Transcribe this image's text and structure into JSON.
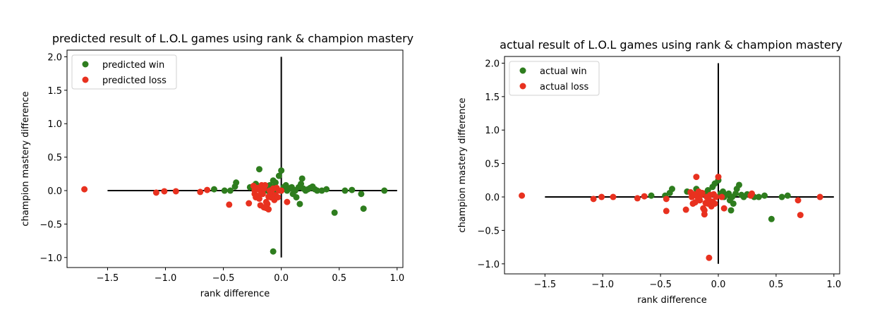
{
  "chart_data": [
    {
      "type": "scatter",
      "title": "predicted result of L.O.L games using rank & champion mastery",
      "xlabel": "rank difference",
      "ylabel": "champion mastery difference",
      "xlim": [
        -1.85,
        1.05
      ],
      "ylim": [
        -1.15,
        2.1
      ],
      "xticks": [
        -1.5,
        -1.0,
        -0.5,
        0.0,
        0.5,
        1.0
      ],
      "xtick_labels": [
        "−1.5",
        "−1.0",
        "−0.5",
        "0.0",
        "0.5",
        "1.0"
      ],
      "yticks": [
        -1.0,
        -0.5,
        0.0,
        0.5,
        1.0,
        1.5,
        2.0
      ],
      "ytick_labels": [
        "−1.0",
        "−0.5",
        "0.0",
        "0.5",
        "1.0",
        "1.5",
        "2.0"
      ],
      "grid": false,
      "legend_position": "top-left",
      "reference_lines": [
        {
          "x": [
            -1.5,
            1.0
          ],
          "y": [
            0.0,
            0.0
          ],
          "color": "#000000"
        },
        {
          "x": [
            0.0,
            0.0
          ],
          "y": [
            -1.0,
            2.0
          ],
          "color": "#000000"
        }
      ],
      "series": [
        {
          "name": "predicted win",
          "color": "#2e7d1e",
          "points": [
            [
              -0.58,
              0.02
            ],
            [
              -0.49,
              0.0
            ],
            [
              -0.44,
              0.0
            ],
            [
              -0.4,
              0.06
            ],
            [
              -0.39,
              0.12
            ],
            [
              -0.27,
              0.05
            ],
            [
              -0.22,
              0.1
            ],
            [
              -0.19,
              0.32
            ],
            [
              -0.15,
              0.03
            ],
            [
              -0.12,
              0.0
            ],
            [
              -0.1,
              0.08
            ],
            [
              -0.08,
              0.05
            ],
            [
              -0.07,
              0.15
            ],
            [
              -0.05,
              0.12
            ],
            [
              -0.04,
              0.0
            ],
            [
              -0.02,
              0.22
            ],
            [
              0.0,
              0.3
            ],
            [
              0.0,
              0.0
            ],
            [
              0.02,
              0.05
            ],
            [
              0.04,
              0.08
            ],
            [
              0.05,
              0.0
            ],
            [
              0.07,
              0.03
            ],
            [
              0.09,
              0.05
            ],
            [
              0.1,
              -0.05
            ],
            [
              0.11,
              0.01
            ],
            [
              0.13,
              -0.1
            ],
            [
              0.15,
              0.05
            ],
            [
              0.17,
              0.1
            ],
            [
              0.18,
              0.18
            ],
            [
              0.19,
              0.03
            ],
            [
              0.21,
              0.0
            ],
            [
              0.23,
              0.02
            ],
            [
              0.25,
              0.04
            ],
            [
              0.27,
              0.06
            ],
            [
              0.29,
              0.02
            ],
            [
              0.31,
              0.0
            ],
            [
              0.35,
              0.0
            ],
            [
              0.39,
              0.02
            ],
            [
              0.46,
              -0.33
            ],
            [
              0.55,
              0.0
            ],
            [
              0.61,
              0.01
            ],
            [
              0.69,
              -0.05
            ],
            [
              0.71,
              -0.27
            ],
            [
              0.89,
              0.0
            ],
            [
              -0.07,
              -0.91
            ],
            [
              0.16,
              -0.2
            ],
            [
              0.12,
              0.0
            ]
          ]
        },
        {
          "name": "predicted loss",
          "color": "#e8311f",
          "points": [
            [
              -1.7,
              0.02
            ],
            [
              -1.08,
              -0.03
            ],
            [
              -1.01,
              -0.01
            ],
            [
              -0.91,
              -0.01
            ],
            [
              -0.7,
              -0.02
            ],
            [
              -0.64,
              0.01
            ],
            [
              -0.45,
              -0.21
            ],
            [
              -0.28,
              -0.19
            ],
            [
              -0.24,
              0.07
            ],
            [
              -0.23,
              0.0
            ],
            [
              -0.23,
              -0.05
            ],
            [
              -0.22,
              -0.1
            ],
            [
              -0.21,
              0.04
            ],
            [
              -0.2,
              -0.08
            ],
            [
              -0.19,
              -0.12
            ],
            [
              -0.18,
              0.0
            ],
            [
              -0.17,
              0.08
            ],
            [
              -0.16,
              -0.05
            ],
            [
              -0.15,
              0.03
            ],
            [
              -0.14,
              0.08
            ],
            [
              -0.13,
              -0.17
            ],
            [
              -0.13,
              -0.26
            ],
            [
              -0.12,
              -0.2
            ],
            [
              -0.11,
              -0.09
            ],
            [
              -0.1,
              0.0
            ],
            [
              -0.09,
              -0.1
            ],
            [
              -0.08,
              -0.05
            ],
            [
              -0.07,
              0.03
            ],
            [
              -0.06,
              -0.14
            ],
            [
              -0.05,
              -0.07
            ],
            [
              -0.04,
              0.04
            ],
            [
              -0.03,
              -0.1
            ],
            [
              -0.02,
              0.0
            ],
            [
              0.0,
              0.0
            ],
            [
              0.05,
              -0.17
            ],
            [
              -0.18,
              -0.22
            ],
            [
              -0.15,
              -0.25
            ],
            [
              -0.11,
              -0.28
            ]
          ]
        }
      ]
    },
    {
      "type": "scatter",
      "title": "actual result of L.O.L games using rank & champion mastery",
      "xlabel": "rank difference",
      "ylabel": "champion mastery difference",
      "xlim": [
        -1.85,
        1.05
      ],
      "ylim": [
        -1.15,
        2.1
      ],
      "xticks": [
        -1.5,
        -1.0,
        -0.5,
        0.0,
        0.5,
        1.0
      ],
      "xtick_labels": [
        "−1.5",
        "−1.0",
        "−0.5",
        "0.0",
        "0.5",
        "1.0"
      ],
      "yticks": [
        -1.0,
        -0.5,
        0.0,
        0.5,
        1.0,
        1.5,
        2.0
      ],
      "ytick_labels": [
        "−1.0",
        "−0.5",
        "0.0",
        "0.5",
        "1.0",
        "1.5",
        "2.0"
      ],
      "grid": false,
      "legend_position": "top-left",
      "reference_lines": [
        {
          "x": [
            -1.5,
            1.0
          ],
          "y": [
            0.0,
            0.0
          ],
          "color": "#000000"
        },
        {
          "x": [
            0.0,
            0.0
          ],
          "y": [
            -1.0,
            2.0
          ],
          "color": "#000000"
        }
      ],
      "series": [
        {
          "name": "actual win",
          "color": "#2e7d1e",
          "points": [
            [
              -0.58,
              0.02
            ],
            [
              -0.46,
              0.02
            ],
            [
              -0.42,
              0.06
            ],
            [
              -0.4,
              0.12
            ],
            [
              -0.27,
              0.08
            ],
            [
              -0.19,
              0.12
            ],
            [
              -0.15,
              0.03
            ],
            [
              -0.12,
              0.05
            ],
            [
              -0.09,
              0.1
            ],
            [
              -0.05,
              0.15
            ],
            [
              -0.03,
              0.2
            ],
            [
              0.0,
              0.25
            ],
            [
              0.02,
              0.05
            ],
            [
              0.04,
              0.08
            ],
            [
              0.05,
              0.0
            ],
            [
              0.07,
              0.03
            ],
            [
              0.09,
              0.05
            ],
            [
              0.1,
              -0.05
            ],
            [
              0.12,
              0.0
            ],
            [
              0.15,
              0.05
            ],
            [
              0.16,
              0.12
            ],
            [
              0.18,
              0.18
            ],
            [
              0.2,
              0.03
            ],
            [
              0.22,
              0.0
            ],
            [
              0.25,
              0.04
            ],
            [
              0.29,
              0.02
            ],
            [
              0.31,
              0.0
            ],
            [
              0.35,
              0.0
            ],
            [
              0.4,
              0.02
            ],
            [
              0.46,
              -0.33
            ],
            [
              0.55,
              0.0
            ],
            [
              0.6,
              0.02
            ],
            [
              0.13,
              -0.1
            ],
            [
              0.11,
              -0.2
            ]
          ]
        },
        {
          "name": "actual loss",
          "color": "#e8311f",
          "points": [
            [
              -1.7,
              0.02
            ],
            [
              -1.08,
              -0.03
            ],
            [
              -1.01,
              0.0
            ],
            [
              -0.91,
              0.0
            ],
            [
              -0.7,
              -0.02
            ],
            [
              -0.64,
              0.01
            ],
            [
              -0.45,
              -0.21
            ],
            [
              -0.45,
              -0.03
            ],
            [
              -0.28,
              -0.19
            ],
            [
              -0.24,
              0.07
            ],
            [
              -0.23,
              0.0
            ],
            [
              -0.22,
              -0.1
            ],
            [
              -0.21,
              0.04
            ],
            [
              -0.2,
              -0.08
            ],
            [
              -0.19,
              0.3
            ],
            [
              -0.18,
              0.0
            ],
            [
              -0.17,
              0.08
            ],
            [
              -0.16,
              -0.05
            ],
            [
              -0.15,
              0.03
            ],
            [
              -0.14,
              0.06
            ],
            [
              -0.13,
              -0.17
            ],
            [
              -0.12,
              -0.26
            ],
            [
              -0.12,
              -0.2
            ],
            [
              -0.11,
              -0.09
            ],
            [
              -0.1,
              0.0
            ],
            [
              -0.09,
              -0.1
            ],
            [
              -0.08,
              -0.05
            ],
            [
              -0.07,
              0.03
            ],
            [
              -0.06,
              -0.14
            ],
            [
              -0.05,
              -0.07
            ],
            [
              -0.04,
              0.04
            ],
            [
              -0.03,
              -0.1
            ],
            [
              -0.02,
              0.0
            ],
            [
              0.0,
              0.3
            ],
            [
              0.05,
              -0.17
            ],
            [
              -0.08,
              -0.91
            ],
            [
              0.28,
              0.02
            ],
            [
              0.29,
              0.05
            ],
            [
              0.69,
              -0.05
            ],
            [
              0.71,
              -0.27
            ],
            [
              0.88,
              0.0
            ],
            [
              0.03,
              0.0
            ]
          ]
        }
      ]
    }
  ]
}
